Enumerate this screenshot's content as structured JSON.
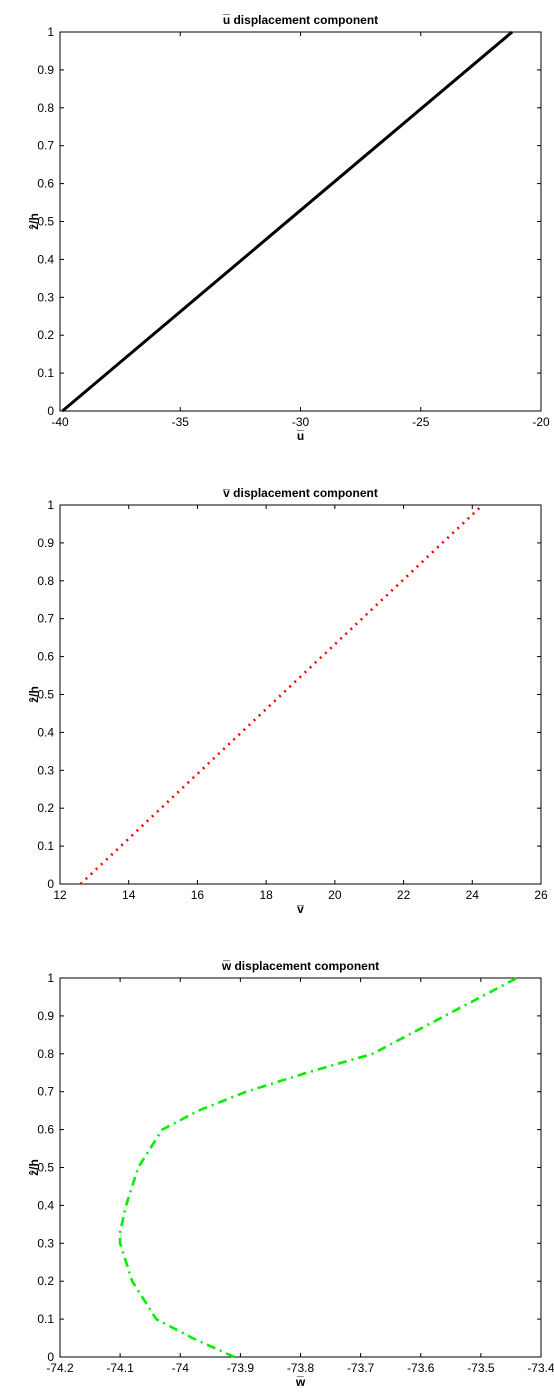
{
  "chart_data": [
    {
      "type": "line",
      "title": "u̅ displacement component",
      "xlabel": "u̅",
      "ylabel": "ẑ/h",
      "xlim": [
        -40,
        -20
      ],
      "ylim": [
        0,
        1
      ],
      "xticks": [
        -40,
        -35,
        -30,
        -25,
        -20
      ],
      "yticks": [
        0,
        0.1,
        0.2,
        0.3,
        0.4,
        0.5,
        0.6,
        0.7,
        0.8,
        0.9,
        1
      ],
      "xtick_labels": [
        "-40",
        "-35",
        "-30",
        "-25",
        "-20"
      ],
      "ytick_labels": [
        "0",
        "0.1",
        "0.2",
        "0.3",
        "0.4",
        "0.5",
        "0.6",
        "0.7",
        "0.8",
        "0.9",
        "1"
      ],
      "grid": false,
      "series": [
        {
          "color": "#000000",
          "style": "solid",
          "x": [
            -39.9,
            -21.2
          ],
          "y": [
            0,
            1
          ]
        }
      ]
    },
    {
      "type": "line",
      "title": "v̅ displacement component",
      "xlabel": "v̅",
      "ylabel": "ẑ/h",
      "xlim": [
        12,
        26
      ],
      "ylim": [
        0,
        1
      ],
      "xticks": [
        12,
        14,
        16,
        18,
        20,
        22,
        24,
        26
      ],
      "yticks": [
        0,
        0.1,
        0.2,
        0.3,
        0.4,
        0.5,
        0.6,
        0.7,
        0.8,
        0.9,
        1
      ],
      "xtick_labels": [
        "12",
        "14",
        "16",
        "18",
        "20",
        "22",
        "24",
        "26"
      ],
      "ytick_labels": [
        "0",
        "0.1",
        "0.2",
        "0.3",
        "0.4",
        "0.5",
        "0.6",
        "0.7",
        "0.8",
        "0.9",
        "1"
      ],
      "grid": false,
      "series": [
        {
          "color": "#ff0000",
          "style": "dotted",
          "x": [
            12.6,
            24.3
          ],
          "y": [
            0,
            1
          ]
        }
      ]
    },
    {
      "type": "line",
      "title": "w̅ displacement component",
      "xlabel": "w̅",
      "ylabel": "ẑ/h",
      "xlim": [
        -74.2,
        -73.4
      ],
      "ylim": [
        0,
        1
      ],
      "xticks": [
        -74.2,
        -74.1,
        -74,
        -73.9,
        -73.8,
        -73.7,
        -73.6,
        -73.5,
        -73.4
      ],
      "yticks": [
        0,
        0.1,
        0.2,
        0.3,
        0.4,
        0.5,
        0.6,
        0.7,
        0.8,
        0.9,
        1
      ],
      "xtick_labels": [
        "-74.2",
        "-74.1",
        "-74",
        "-73.9",
        "-73.8",
        "-73.7",
        "-73.6",
        "-73.5",
        "-73.4"
      ],
      "ytick_labels": [
        "0",
        "0.1",
        "0.2",
        "0.3",
        "0.4",
        "0.5",
        "0.6",
        "0.7",
        "0.8",
        "0.9",
        "1"
      ],
      "grid": false,
      "series": [
        {
          "color": "#00ee00",
          "style": "dashdot",
          "x": [
            -73.91,
            -73.98,
            -74.04,
            -74.08,
            -74.1,
            -74.1,
            -74.09,
            -74.07,
            -74.03,
            -73.97,
            -73.89,
            -73.79,
            -73.68,
            -73.56,
            -73.44
          ],
          "y": [
            0,
            0.05,
            0.1,
            0.2,
            0.3,
            0.33,
            0.4,
            0.5,
            0.6,
            0.65,
            0.7,
            0.75,
            0.8,
            0.9,
            1
          ]
        }
      ]
    }
  ]
}
